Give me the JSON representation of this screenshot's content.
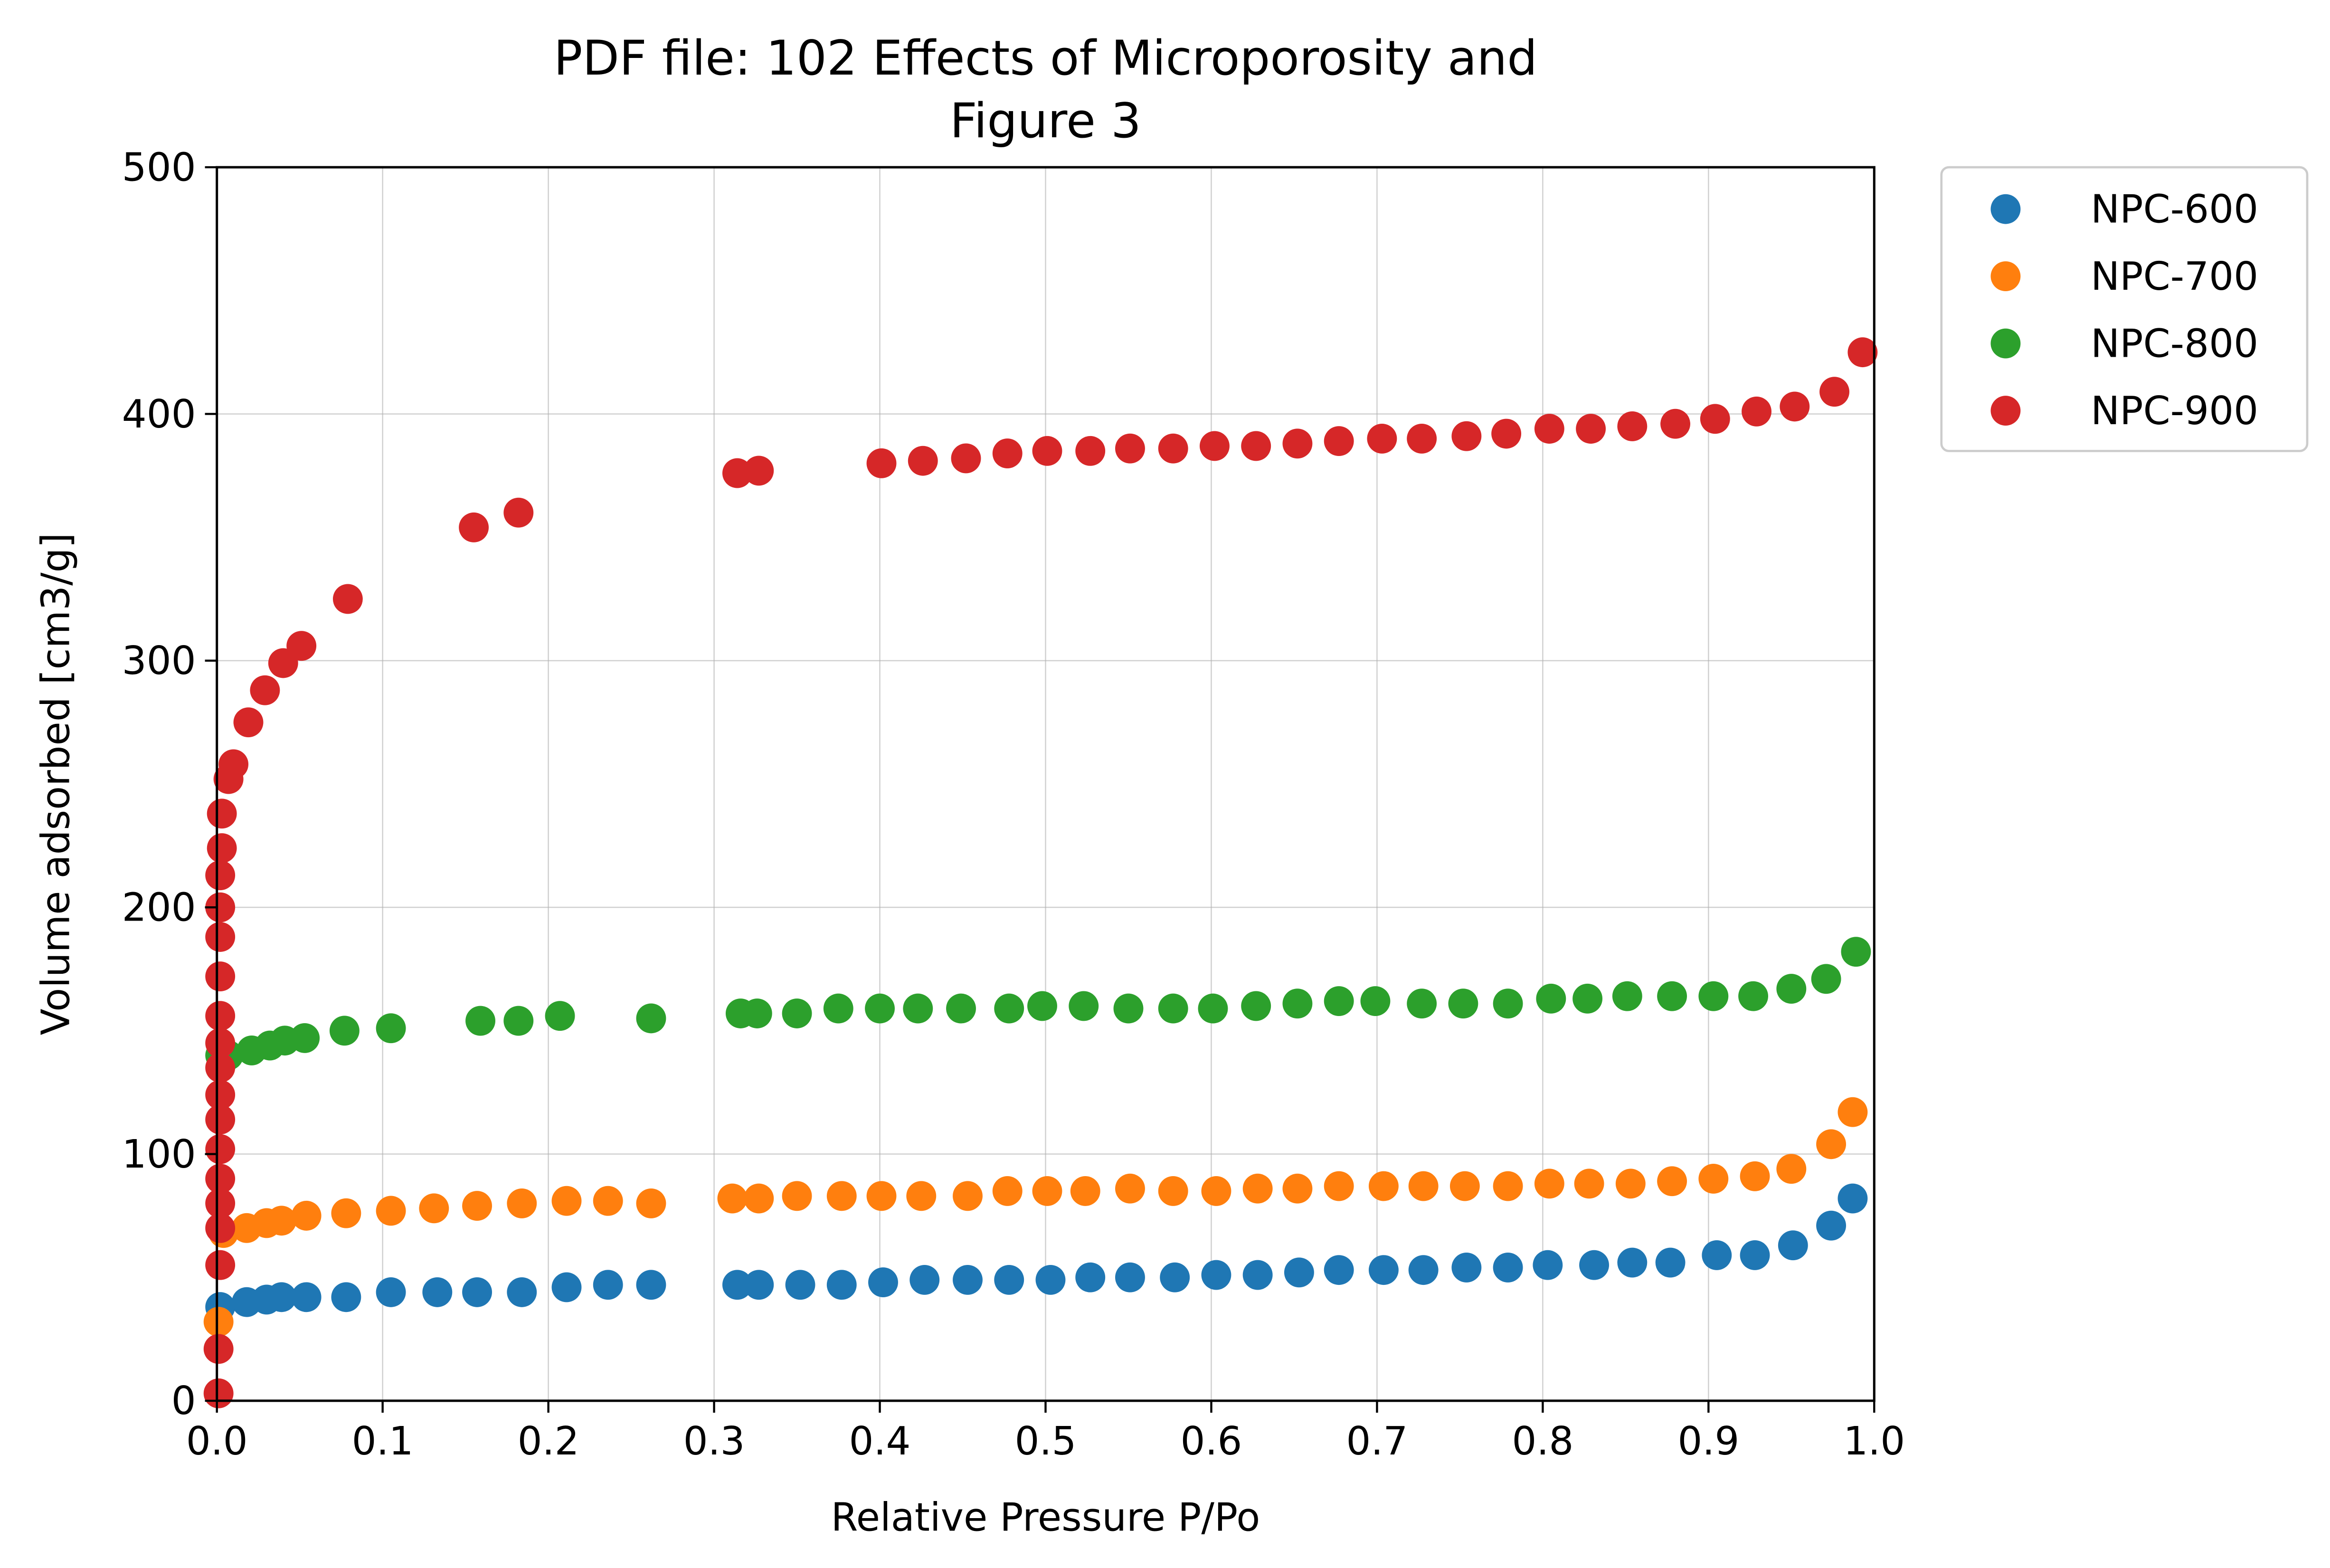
{
  "chart_data": {
    "type": "scatter",
    "title": "PDF file: 102 Effects of Microporosity and\nFigure 3",
    "x_label": "Relative Pressure P/Po",
    "y_label": "Volume adsorbed [cm3/g]",
    "xlim": [
      0,
      1
    ],
    "ylim": [
      0,
      500
    ],
    "xticks": [
      {
        "value": 0,
        "label": "0.0"
      },
      0.1,
      0.2,
      0.3,
      0.4,
      0.5,
      0.6,
      0.7,
      0.8,
      0.9,
      {
        "value": 1,
        "label": "1.0"
      }
    ],
    "yticks": [
      0,
      100,
      200,
      300,
      400,
      500
    ],
    "grid": true,
    "legend": "outside upper right",
    "series": [
      {
        "name": "NPC-600",
        "color": "#1f77b4",
        "x": [
          0.002,
          0.018,
          0.03,
          0.039,
          0.054,
          0.078,
          0.105,
          0.133,
          0.157,
          0.184,
          0.211,
          0.236,
          0.262,
          0.314,
          0.327,
          0.352,
          0.377,
          0.402,
          0.427,
          0.453,
          0.478,
          0.503,
          0.527,
          0.551,
          0.578,
          0.603,
          0.628,
          0.653,
          0.677,
          0.704,
          0.728,
          0.754,
          0.779,
          0.803,
          0.831,
          0.854,
          0.877,
          0.905,
          0.928,
          0.951,
          0.974,
          0.987
        ],
        "values": [
          38,
          40,
          41,
          42,
          42,
          42,
          44,
          44,
          44,
          44,
          46,
          47,
          47,
          47,
          47,
          47,
          47,
          48,
          49,
          49,
          49,
          49,
          50,
          50,
          50,
          51,
          51,
          52,
          53,
          53,
          53,
          54,
          54,
          55,
          55,
          56,
          56,
          59,
          59,
          63,
          71,
          82
        ]
      },
      {
        "name": "NPC-700",
        "color": "#ff7f0e",
        "x": [
          0.001,
          0.004,
          0.018,
          0.03,
          0.039,
          0.054,
          0.078,
          0.105,
          0.131,
          0.157,
          0.184,
          0.211,
          0.236,
          0.262,
          0.311,
          0.327,
          0.35,
          0.377,
          0.401,
          0.425,
          0.453,
          0.477,
          0.501,
          0.524,
          0.551,
          0.577,
          0.603,
          0.628,
          0.652,
          0.677,
          0.704,
          0.728,
          0.753,
          0.779,
          0.804,
          0.828,
          0.853,
          0.878,
          0.903,
          0.928,
          0.95,
          0.974,
          0.987
        ],
        "values": [
          32,
          68,
          70,
          72,
          73,
          75,
          76,
          77,
          78,
          79,
          80,
          81,
          81,
          80,
          82,
          82,
          83,
          83,
          83,
          83,
          83,
          85,
          85,
          85,
          86,
          85,
          85,
          86,
          86,
          87,
          87,
          87,
          87,
          87,
          88,
          88,
          88,
          89,
          90,
          91,
          94,
          104,
          117
        ]
      },
      {
        "name": "NPC-800",
        "color": "#2ca02c",
        "x": [
          0.002,
          0.007,
          0.021,
          0.032,
          0.041,
          0.053,
          0.077,
          0.105,
          0.159,
          0.182,
          0.207,
          0.262,
          0.316,
          0.326,
          0.35,
          0.375,
          0.4,
          0.423,
          0.449,
          0.478,
          0.498,
          0.523,
          0.55,
          0.577,
          0.601,
          0.627,
          0.652,
          0.677,
          0.699,
          0.727,
          0.752,
          0.779,
          0.805,
          0.827,
          0.851,
          0.878,
          0.903,
          0.927,
          0.95,
          0.971,
          0.989
        ],
        "values": [
          140,
          140,
          142,
          144,
          146,
          147,
          150,
          151,
          154,
          154,
          156,
          155,
          157,
          157,
          157,
          159,
          159,
          159,
          159,
          159,
          160,
          160,
          159,
          159,
          159,
          160,
          161,
          162,
          162,
          161,
          161,
          161,
          163,
          163,
          164,
          164,
          164,
          164,
          167,
          171,
          182
        ]
      },
      {
        "name": "NPC-900",
        "color": "#d62728",
        "x": [
          0.001,
          0.001,
          0.002,
          0.002,
          0.002,
          0.002,
          0.002,
          0.002,
          0.002,
          0.002,
          0.002,
          0.002,
          0.002,
          0.002,
          0.002,
          0.002,
          0.003,
          0.003,
          0.007,
          0.01,
          0.019,
          0.029,
          0.04,
          0.051,
          0.079,
          0.155,
          0.182,
          0.314,
          0.327,
          0.401,
          0.426,
          0.452,
          0.477,
          0.501,
          0.527,
          0.551,
          0.577,
          0.602,
          0.627,
          0.652,
          0.677,
          0.703,
          0.727,
          0.754,
          0.778,
          0.804,
          0.829,
          0.854,
          0.88,
          0.904,
          0.929,
          0.952,
          0.976,
          0.993
        ],
        "values": [
          3,
          21,
          55,
          70,
          80,
          90,
          102,
          114,
          124,
          135,
          145,
          156,
          172,
          188,
          200,
          213,
          224,
          238,
          252,
          258,
          275,
          288,
          299,
          306,
          325,
          354,
          360,
          376,
          377,
          380,
          381,
          382,
          384,
          385,
          385,
          386,
          386,
          387,
          387,
          388,
          389,
          390,
          390,
          391,
          392,
          394,
          394,
          395,
          396,
          398,
          401,
          403,
          409,
          425
        ]
      }
    ]
  }
}
